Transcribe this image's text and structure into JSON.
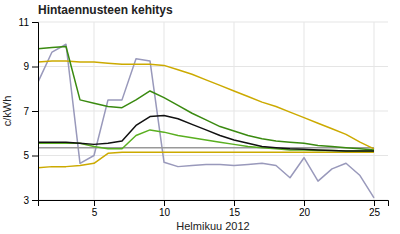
{
  "chart_data": {
    "type": "line",
    "title": "Hintaennusteen kehitys",
    "x_label": "Helmikuu 2012",
    "y_label": "c/kWh",
    "xlim": [
      1,
      26
    ],
    "ylim": [
      3,
      11
    ],
    "xticks": [
      5,
      10,
      15,
      20,
      25
    ],
    "yticks": [
      3,
      5,
      7,
      9,
      11
    ],
    "grid": true,
    "x": [
      1,
      2,
      3,
      4,
      5,
      6,
      7,
      8,
      9,
      10,
      11,
      12,
      13,
      14,
      15,
      16,
      17,
      18,
      19,
      20,
      21,
      22,
      23,
      24,
      25
    ],
    "series": [
      {
        "color": "#9999bb",
        "values": [
          8.3,
          9.65,
          10.0,
          4.65,
          5.0,
          7.5,
          7.5,
          9.35,
          9.25,
          4.7,
          4.5,
          4.55,
          4.6,
          4.6,
          4.55,
          4.6,
          4.65,
          4.55,
          4.0,
          4.9,
          3.85,
          4.4,
          4.65,
          4.1,
          3.1
        ]
      },
      {
        "color": "#999999",
        "values": [
          5.35,
          5.35,
          5.35,
          5.35,
          5.35,
          5.35,
          5.35,
          5.35,
          5.35,
          5.35,
          5.35,
          5.35,
          5.35,
          5.35,
          5.35,
          5.35,
          5.35,
          5.35,
          5.35,
          5.35,
          5.35,
          5.35,
          5.35,
          5.35,
          5.35
        ]
      },
      {
        "color": "#ccaa00",
        "values": [
          4.45,
          4.5,
          4.5,
          4.55,
          4.65,
          5.1,
          5.15,
          5.15,
          5.15,
          5.15,
          5.15,
          5.15,
          5.15,
          5.15,
          5.15,
          5.15,
          5.15,
          5.15,
          5.15,
          5.15,
          5.15,
          5.15,
          5.15,
          5.15,
          5.15
        ]
      },
      {
        "color": "#ccaa00",
        "values": [
          9.2,
          9.25,
          9.25,
          9.2,
          9.2,
          9.15,
          9.1,
          9.1,
          9.1,
          9.05,
          8.85,
          8.65,
          8.4,
          8.15,
          7.9,
          7.65,
          7.4,
          7.2,
          6.95,
          6.7,
          6.45,
          6.2,
          5.95,
          5.6,
          5.3
        ]
      },
      {
        "color": "#3a8a10",
        "values": [
          9.8,
          9.85,
          9.9,
          7.5,
          7.35,
          7.2,
          7.15,
          7.5,
          7.9,
          7.6,
          7.25,
          6.9,
          6.6,
          6.3,
          6.1,
          5.9,
          5.75,
          5.65,
          5.6,
          5.55,
          5.45,
          5.4,
          5.35,
          5.3,
          5.25
        ]
      },
      {
        "color": "#5aaf20",
        "values": [
          5.55,
          5.55,
          5.55,
          5.55,
          5.4,
          5.3,
          5.3,
          5.9,
          6.15,
          6.05,
          5.9,
          5.8,
          5.7,
          5.6,
          5.5,
          5.4,
          5.35,
          5.3,
          5.25,
          5.25,
          5.22,
          5.22,
          5.2,
          5.2,
          5.2
        ]
      },
      {
        "color": "#111111",
        "values": [
          5.6,
          5.6,
          5.6,
          5.55,
          5.5,
          5.55,
          5.65,
          6.35,
          6.75,
          6.8,
          6.65,
          6.4,
          6.15,
          5.9,
          5.7,
          5.55,
          5.4,
          5.35,
          5.3,
          5.28,
          5.25,
          5.22,
          5.2,
          5.2,
          5.2
        ]
      }
    ]
  }
}
